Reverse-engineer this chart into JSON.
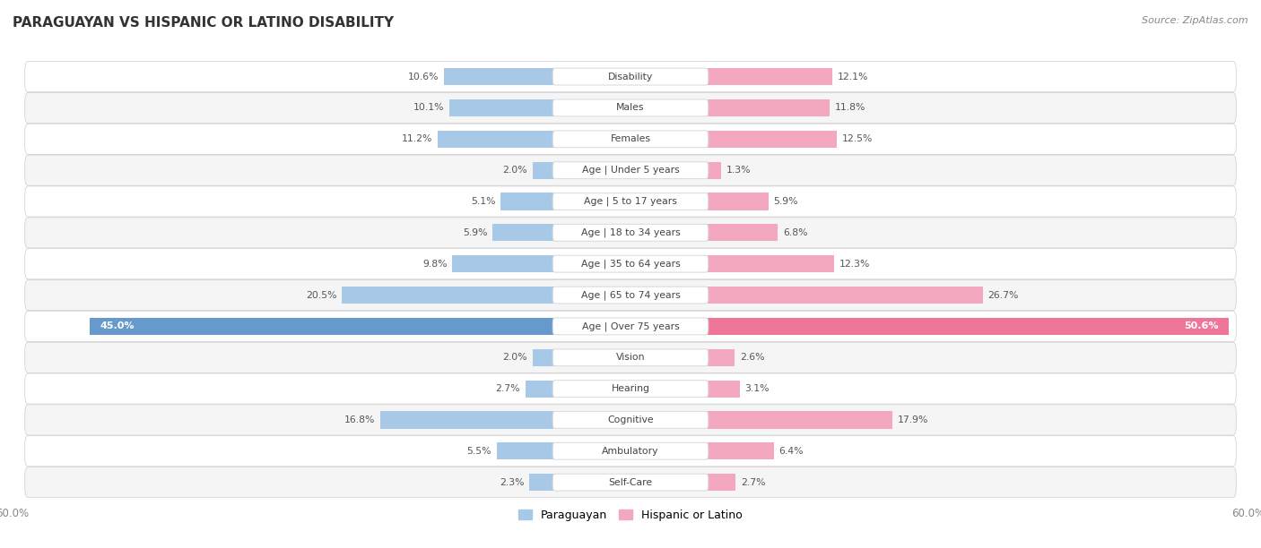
{
  "title": "PARAGUAYAN VS HISPANIC OR LATINO DISABILITY",
  "source": "Source: ZipAtlas.com",
  "categories": [
    "Disability",
    "Males",
    "Females",
    "Age | Under 5 years",
    "Age | 5 to 17 years",
    "Age | 18 to 34 years",
    "Age | 35 to 64 years",
    "Age | 65 to 74 years",
    "Age | Over 75 years",
    "Vision",
    "Hearing",
    "Cognitive",
    "Ambulatory",
    "Self-Care"
  ],
  "paraguayan": [
    10.6,
    10.1,
    11.2,
    2.0,
    5.1,
    5.9,
    9.8,
    20.5,
    45.0,
    2.0,
    2.7,
    16.8,
    5.5,
    2.3
  ],
  "hispanic": [
    12.1,
    11.8,
    12.5,
    1.3,
    5.9,
    6.8,
    12.3,
    26.7,
    50.6,
    2.6,
    3.1,
    17.9,
    6.4,
    2.7
  ],
  "paraguayan_labels": [
    "10.6%",
    "10.1%",
    "11.2%",
    "2.0%",
    "5.1%",
    "5.9%",
    "9.8%",
    "20.5%",
    "45.0%",
    "2.0%",
    "2.7%",
    "16.8%",
    "5.5%",
    "2.3%"
  ],
  "hispanic_labels": [
    "12.1%",
    "11.8%",
    "12.5%",
    "1.3%",
    "5.9%",
    "6.8%",
    "12.3%",
    "26.7%",
    "50.6%",
    "2.6%",
    "3.1%",
    "17.9%",
    "6.4%",
    "2.7%"
  ],
  "paraguayan_color": "#a8c8e8",
  "hispanic_color": "#f4a8c0",
  "paraguayan_highlight_color": "#6699cc",
  "hispanic_highlight_color": "#ee7799",
  "highlight_row": 8,
  "xlim": 60.0,
  "bar_height": 0.55,
  "background_color": "#ffffff",
  "row_bg_odd": "#f5f5f5",
  "row_bg_even": "#ffffff",
  "legend_paraguayan": "Paraguayan",
  "legend_hispanic": "Hispanic or Latino"
}
